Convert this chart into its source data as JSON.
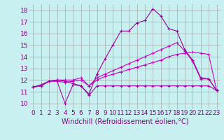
{
  "xlabel": "Windchill (Refroidissement éolien,°C)",
  "ylabel": "",
  "background_color": "#c8f0f0",
  "xlim": [
    -0.5,
    23.5
  ],
  "ylim": [
    9.5,
    18.5
  ],
  "yticks": [
    10,
    11,
    12,
    13,
    14,
    15,
    16,
    17,
    18
  ],
  "xticks": [
    0,
    1,
    2,
    3,
    4,
    5,
    6,
    7,
    8,
    9,
    10,
    11,
    12,
    13,
    14,
    15,
    16,
    17,
    18,
    19,
    20,
    21,
    22,
    23
  ],
  "series": [
    {
      "x": [
        0,
        1,
        2,
        3,
        4,
        5,
        6,
        7,
        8,
        9,
        10,
        11,
        12,
        13,
        14,
        15,
        16,
        17,
        18,
        19,
        20,
        21,
        22,
        23
      ],
      "y": [
        11.4,
        11.5,
        11.9,
        11.9,
        10.0,
        11.6,
        11.5,
        10.7,
        11.5,
        11.5,
        11.5,
        11.5,
        11.5,
        11.5,
        11.5,
        11.5,
        11.5,
        11.5,
        11.5,
        11.5,
        11.5,
        11.5,
        11.5,
        11.1
      ],
      "color": "#aa00aa",
      "marker": "+"
    },
    {
      "x": [
        0,
        1,
        2,
        3,
        4,
        5,
        6,
        7,
        8,
        9,
        10,
        11,
        12,
        13,
        14,
        15,
        16,
        17,
        18,
        19,
        20,
        21,
        22,
        23
      ],
      "y": [
        11.4,
        11.5,
        11.9,
        11.9,
        11.8,
        11.9,
        12.0,
        11.5,
        12.0,
        12.3,
        12.5,
        12.7,
        12.9,
        13.1,
        13.3,
        13.5,
        13.7,
        14.0,
        14.2,
        14.3,
        14.4,
        14.3,
        14.2,
        11.1
      ],
      "color": "#cc00cc",
      "marker": "+"
    },
    {
      "x": [
        0,
        1,
        2,
        3,
        4,
        5,
        6,
        7,
        8,
        9,
        10,
        11,
        12,
        13,
        14,
        15,
        16,
        17,
        18,
        19,
        20,
        21,
        22,
        23
      ],
      "y": [
        11.4,
        11.5,
        11.9,
        12.0,
        12.0,
        12.0,
        12.2,
        11.5,
        12.2,
        12.5,
        12.8,
        13.1,
        13.4,
        13.7,
        14.0,
        14.3,
        14.6,
        14.9,
        15.2,
        14.5,
        13.6,
        12.1,
        12.1,
        11.1
      ],
      "color": "#cc00cc",
      "marker": "+"
    },
    {
      "x": [
        0,
        1,
        2,
        3,
        4,
        5,
        6,
        7,
        8,
        9,
        10,
        11,
        12,
        13,
        14,
        15,
        16,
        17,
        18,
        19,
        20,
        21,
        22,
        23
      ],
      "y": [
        11.4,
        11.6,
        11.9,
        12.0,
        11.9,
        11.7,
        11.5,
        10.8,
        12.5,
        13.8,
        15.0,
        16.2,
        16.2,
        16.9,
        17.1,
        18.1,
        17.5,
        16.4,
        16.2,
        14.6,
        13.7,
        12.2,
        12.1,
        11.1
      ],
      "color": "#990099",
      "marker": "+"
    }
  ],
  "grid_color": "#999999",
  "font_color": "#880088",
  "tick_fontsize": 6.5,
  "label_fontsize": 7
}
